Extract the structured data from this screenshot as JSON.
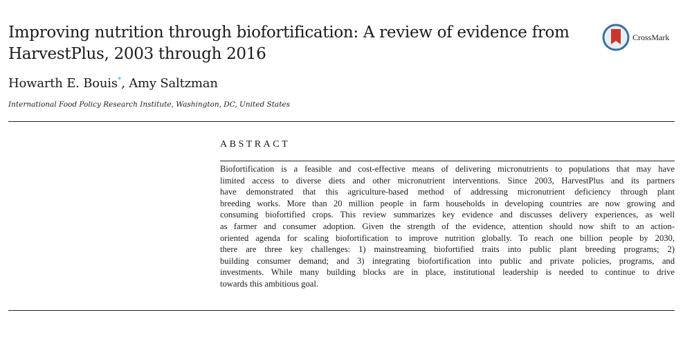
{
  "title": "Improving nutrition through biofortification: A review of evidence from HarvestPlus, 2003 through 2016",
  "authors": {
    "first": "Howarth E. Bouis",
    "marker": "*",
    "second": ", Amy Saltzman"
  },
  "affiliation": "International Food Policy Research Institute, Washington, DC, United States",
  "crossmark": {
    "label": "CrossMark",
    "icon": "crossmark-icon"
  },
  "abstract": {
    "heading": "ABSTRACT",
    "lines": [
      "Biofortification is a feasible and cost-effective means of delivering micronutrients to populations that may have",
      "limited access to diverse diets and other micronutrient interventions. Since 2003, HarvestPlus and its partners",
      "have demonstrated that this agriculture-based method of addressing micronutrient deficiency through plant",
      "breeding works. More than 20 million people in farm households in developing countries are now growing and",
      "consuming biofortified crops. This review summarizes key evidence and discusses delivery experiences, as well",
      "as farmer and consumer adoption. Given the strength of the evidence, attention should now shift to an action-",
      "oriented agenda for scaling biofortification to improve nutrition globally. To reach one billion people by 2030,",
      "there are three key challenges: 1) mainstreaming biofortified traits into public plant breeding programs; 2)",
      "building consumer demand; and 3) integrating biofortification into public and private policies, programs, and",
      "investments. While many building blocks are in place, institutional leadership is needed to continue to drive",
      "towards this ambitious goal."
    ]
  }
}
